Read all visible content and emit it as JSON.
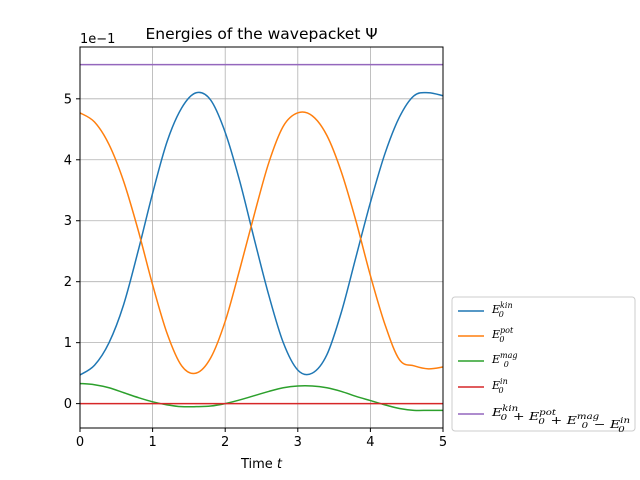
{
  "chart_data": {
    "type": "line",
    "title": "Energies of the wavepacket Ψ",
    "xlabel": "Time",
    "xlabel_var": "t",
    "ylabel": "",
    "offset_text": "1e−1",
    "xlim": [
      0,
      5
    ],
    "ylim": [
      -0.4,
      5.85
    ],
    "x_ticks": [
      "0",
      "1",
      "2",
      "3",
      "4",
      "5"
    ],
    "y_ticks": [
      "0",
      "1",
      "2",
      "3",
      "4",
      "5"
    ],
    "grid": true,
    "legend_position": "outside-right-bottom",
    "colors": {
      "kin": "#1f77b4",
      "pot": "#ff7f0e",
      "mag": "#2ca02c",
      "in": "#d62728",
      "total": "#9467bd"
    },
    "series": [
      {
        "name": "E_0^kin",
        "legend": {
          "base": "E",
          "sub": "0",
          "sup": "kin",
          "extra": ""
        },
        "color_key": "kin",
        "x": [
          0,
          0.2,
          0.4,
          0.6,
          0.8,
          1.0,
          1.2,
          1.4,
          1.6,
          1.8,
          2.0,
          2.2,
          2.4,
          2.6,
          2.8,
          3.0,
          3.2,
          3.4,
          3.6,
          3.8,
          4.0,
          4.2,
          4.4,
          4.6,
          4.8,
          5.0
        ],
        "values": [
          0.47,
          0.63,
          1.0,
          1.62,
          2.5,
          3.45,
          4.3,
          4.85,
          5.1,
          4.98,
          4.45,
          3.65,
          2.7,
          1.78,
          1.0,
          0.55,
          0.5,
          0.8,
          1.5,
          2.4,
          3.3,
          4.1,
          4.7,
          5.05,
          5.1,
          5.05
        ]
      },
      {
        "name": "E_0^pot",
        "legend": {
          "base": "E",
          "sub": "0",
          "sup": "pot",
          "extra": ""
        },
        "color_key": "pot",
        "x": [
          0,
          0.2,
          0.4,
          0.6,
          0.8,
          1.0,
          1.2,
          1.4,
          1.6,
          1.8,
          2.0,
          2.2,
          2.4,
          2.6,
          2.8,
          3.0,
          3.2,
          3.4,
          3.6,
          3.8,
          4.0,
          4.2,
          4.4,
          4.6,
          4.8,
          5.0
        ],
        "values": [
          4.77,
          4.62,
          4.25,
          3.65,
          2.85,
          1.95,
          1.15,
          0.62,
          0.5,
          0.75,
          1.35,
          2.2,
          3.1,
          3.95,
          4.55,
          4.77,
          4.72,
          4.4,
          3.8,
          3.0,
          2.1,
          1.3,
          0.72,
          0.62,
          0.57,
          0.6
        ]
      },
      {
        "name": "E_0^mag",
        "legend": {
          "base": "E",
          "sub": "0",
          "sup": "mag",
          "extra": ""
        },
        "color_key": "mag",
        "x": [
          0,
          0.2,
          0.4,
          0.6,
          0.8,
          1.0,
          1.2,
          1.4,
          1.6,
          1.8,
          2.0,
          2.2,
          2.4,
          2.6,
          2.8,
          3.0,
          3.2,
          3.4,
          3.6,
          3.8,
          4.0,
          4.2,
          4.4,
          4.6,
          4.8,
          5.0
        ],
        "values": [
          0.33,
          0.31,
          0.26,
          0.18,
          0.1,
          0.03,
          -0.02,
          -0.05,
          -0.05,
          -0.04,
          0.0,
          0.06,
          0.13,
          0.2,
          0.26,
          0.29,
          0.29,
          0.26,
          0.2,
          0.12,
          0.05,
          -0.02,
          -0.08,
          -0.11,
          -0.11,
          -0.11
        ]
      },
      {
        "name": "E_0^in",
        "legend": {
          "base": "E",
          "sub": "0",
          "sup": "in",
          "extra": ""
        },
        "color_key": "in",
        "x": [
          0,
          5
        ],
        "values": [
          0,
          0
        ]
      },
      {
        "name": "E_0^kin + E_0^pot + E_0^mag − E_0^in",
        "legend": {
          "base": "E",
          "sub": "0",
          "sup": "kin",
          "extra": "total"
        },
        "color_key": "total",
        "x": [
          0,
          5
        ],
        "values": [
          5.56,
          5.56
        ]
      }
    ]
  }
}
